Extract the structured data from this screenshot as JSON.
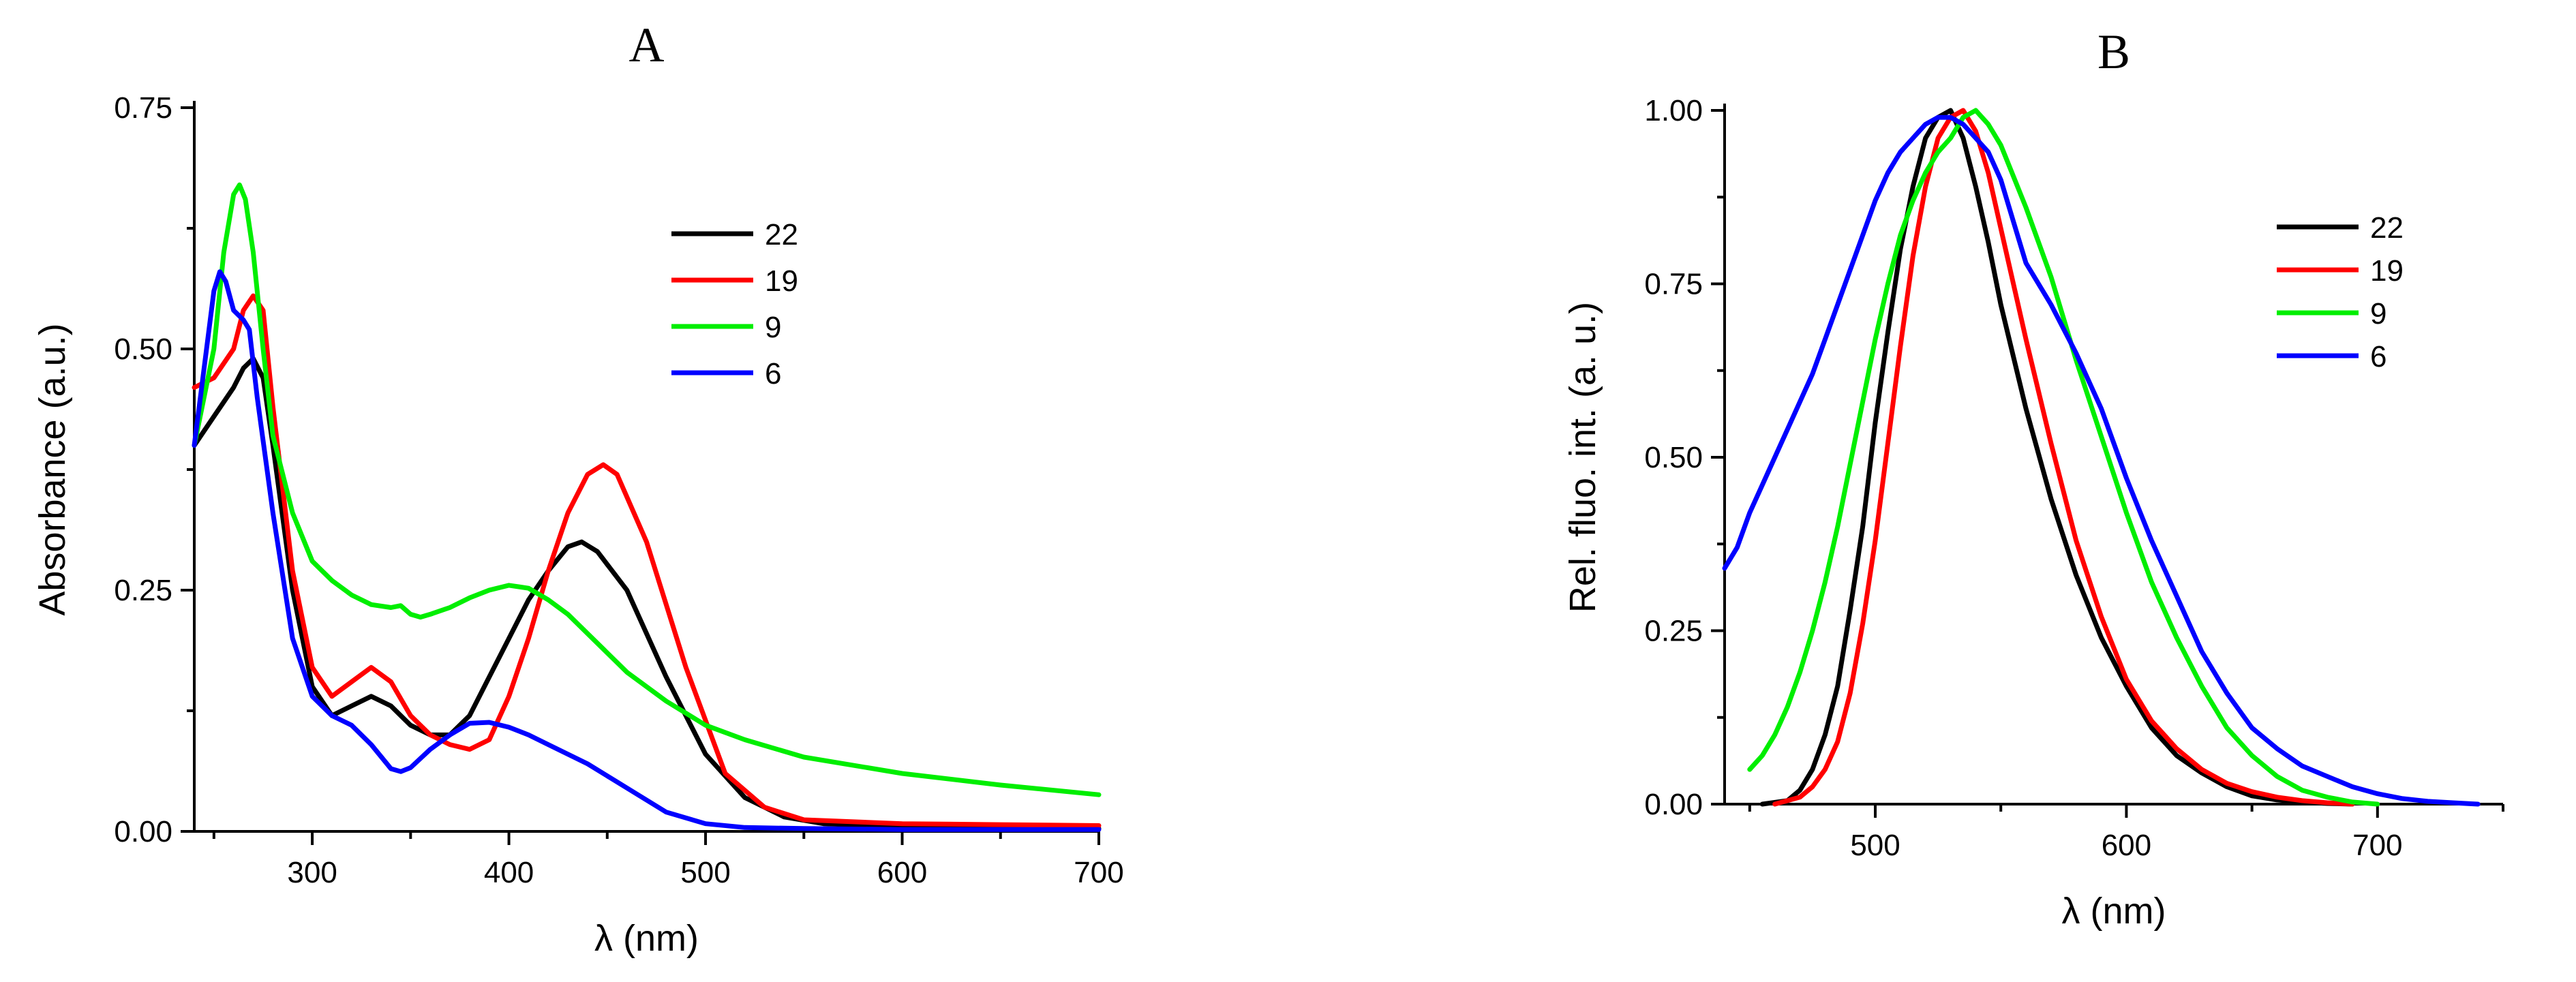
{
  "chart_data": [
    {
      "type": "line",
      "title": "A",
      "xlabel": "λ (nm)",
      "ylabel": "Absorbance (a.u.)",
      "xlim": [
        240,
        700
      ],
      "ylim": [
        0,
        0.75
      ],
      "xticks": [
        300,
        400,
        500,
        600,
        700
      ],
      "xtick_labels": [
        "300",
        "400",
        "500",
        "600",
        "700"
      ],
      "yticks": [
        0,
        0.25,
        0.5,
        0.75
      ],
      "ytick_labels": [
        "0.00",
        "0.25",
        "0.50",
        "0.75"
      ],
      "legend_position": "top-right",
      "series": [
        {
          "name": "22",
          "color": "#000000",
          "x": [
            240,
            250,
            260,
            265,
            270,
            275,
            280,
            290,
            300,
            310,
            320,
            330,
            340,
            350,
            360,
            370,
            380,
            390,
            400,
            410,
            420,
            430,
            437,
            445,
            460,
            480,
            500,
            520,
            540,
            560,
            600,
            650,
            700
          ],
          "y": [
            0.4,
            0.43,
            0.46,
            0.48,
            0.49,
            0.47,
            0.4,
            0.25,
            0.15,
            0.12,
            0.13,
            0.14,
            0.13,
            0.11,
            0.1,
            0.1,
            0.12,
            0.16,
            0.2,
            0.24,
            0.27,
            0.295,
            0.3,
            0.29,
            0.25,
            0.16,
            0.08,
            0.035,
            0.015,
            0.008,
            0.005,
            0.004,
            0.003
          ]
        },
        {
          "name": "19",
          "color": "#ff0000",
          "x": [
            240,
            250,
            260,
            265,
            270,
            275,
            280,
            290,
            300,
            310,
            320,
            330,
            340,
            350,
            360,
            370,
            380,
            390,
            400,
            410,
            420,
            430,
            440,
            448,
            455,
            470,
            490,
            510,
            530,
            550,
            600,
            650,
            700
          ],
          "y": [
            0.46,
            0.47,
            0.5,
            0.54,
            0.555,
            0.54,
            0.44,
            0.27,
            0.17,
            0.14,
            0.155,
            0.17,
            0.155,
            0.12,
            0.1,
            0.09,
            0.085,
            0.095,
            0.14,
            0.2,
            0.27,
            0.33,
            0.37,
            0.38,
            0.37,
            0.3,
            0.17,
            0.06,
            0.025,
            0.012,
            0.008,
            0.007,
            0.006
          ]
        },
        {
          "name": "9",
          "color": "#00ee00",
          "x": [
            240,
            250,
            255,
            260,
            263,
            266,
            270,
            275,
            280,
            290,
            300,
            310,
            320,
            330,
            340,
            345,
            350,
            355,
            360,
            370,
            380,
            390,
            400,
            410,
            420,
            430,
            440,
            460,
            480,
            500,
            520,
            550,
            600,
            650,
            700
          ],
          "y": [
            0.4,
            0.5,
            0.6,
            0.66,
            0.67,
            0.655,
            0.6,
            0.5,
            0.41,
            0.33,
            0.28,
            0.26,
            0.245,
            0.235,
            0.232,
            0.234,
            0.225,
            0.222,
            0.225,
            0.232,
            0.242,
            0.25,
            0.255,
            0.252,
            0.24,
            0.225,
            0.205,
            0.165,
            0.135,
            0.11,
            0.095,
            0.077,
            0.06,
            0.048,
            0.038
          ]
        },
        {
          "name": "6",
          "color": "#0000ff",
          "x": [
            240,
            245,
            250,
            253,
            256,
            260,
            265,
            268,
            272,
            280,
            290,
            300,
            310,
            320,
            330,
            340,
            345,
            350,
            360,
            370,
            380,
            390,
            400,
            410,
            420,
            440,
            460,
            480,
            500,
            520,
            550,
            600,
            650,
            700
          ],
          "y": [
            0.4,
            0.48,
            0.56,
            0.58,
            0.57,
            0.54,
            0.53,
            0.52,
            0.45,
            0.33,
            0.2,
            0.14,
            0.12,
            0.11,
            0.09,
            0.065,
            0.062,
            0.066,
            0.085,
            0.1,
            0.112,
            0.113,
            0.108,
            0.1,
            0.09,
            0.07,
            0.045,
            0.02,
            0.008,
            0.004,
            0.003,
            0.002,
            0.002,
            0.002
          ]
        }
      ]
    },
    {
      "type": "line",
      "title": "B",
      "xlabel": "λ (nm)",
      "ylabel": "Rel. fluo. int. (a. u.)",
      "xlim": [
        440,
        750
      ],
      "ylim": [
        0,
        1.0
      ],
      "xticks": [
        500,
        600,
        700
      ],
      "xtick_labels": [
        "500",
        "600",
        "700"
      ],
      "yticks": [
        0,
        0.25,
        0.5,
        0.75,
        1.0
      ],
      "ytick_labels": [
        "0.00",
        "0.25",
        "0.50",
        "0.75",
        "1.00"
      ],
      "legend_position": "top-right",
      "series": [
        {
          "name": "22",
          "color": "#000000",
          "x": [
            455,
            465,
            470,
            475,
            480,
            485,
            490,
            495,
            500,
            505,
            510,
            515,
            520,
            525,
            530,
            535,
            540,
            545,
            550,
            560,
            570,
            580,
            590,
            600,
            610,
            620,
            630,
            640,
            650,
            660,
            670,
            680,
            690
          ],
          "y": [
            0.0,
            0.005,
            0.02,
            0.05,
            0.1,
            0.17,
            0.28,
            0.4,
            0.55,
            0.68,
            0.8,
            0.89,
            0.96,
            0.99,
            1.0,
            0.96,
            0.89,
            0.81,
            0.72,
            0.57,
            0.44,
            0.33,
            0.24,
            0.17,
            0.11,
            0.07,
            0.045,
            0.025,
            0.012,
            0.006,
            0.003,
            0.001,
            0.0
          ]
        },
        {
          "name": "19",
          "color": "#ff0000",
          "x": [
            460,
            470,
            475,
            480,
            485,
            490,
            495,
            500,
            505,
            510,
            515,
            520,
            525,
            530,
            535,
            540,
            545,
            550,
            560,
            570,
            580,
            590,
            600,
            610,
            620,
            630,
            640,
            650,
            660,
            670,
            680,
            690
          ],
          "y": [
            0.0,
            0.01,
            0.025,
            0.05,
            0.09,
            0.16,
            0.26,
            0.38,
            0.52,
            0.66,
            0.79,
            0.89,
            0.96,
            0.99,
            1.0,
            0.97,
            0.91,
            0.83,
            0.67,
            0.52,
            0.38,
            0.27,
            0.18,
            0.12,
            0.08,
            0.05,
            0.03,
            0.018,
            0.01,
            0.005,
            0.002,
            0.0
          ]
        },
        {
          "name": "9",
          "color": "#00ee00",
          "x": [
            450,
            455,
            460,
            465,
            470,
            475,
            480,
            485,
            490,
            495,
            500,
            505,
            510,
            515,
            520,
            525,
            530,
            535,
            540,
            545,
            550,
            560,
            570,
            580,
            590,
            600,
            610,
            620,
            630,
            640,
            650,
            660,
            670,
            680,
            690,
            700
          ],
          "y": [
            0.05,
            0.07,
            0.1,
            0.14,
            0.19,
            0.25,
            0.32,
            0.4,
            0.49,
            0.58,
            0.67,
            0.75,
            0.82,
            0.87,
            0.91,
            0.94,
            0.96,
            0.99,
            1.0,
            0.98,
            0.95,
            0.86,
            0.76,
            0.64,
            0.53,
            0.42,
            0.32,
            0.24,
            0.17,
            0.11,
            0.07,
            0.04,
            0.02,
            0.01,
            0.003,
            0.0
          ]
        },
        {
          "name": "6",
          "color": "#0000ff",
          "x": [
            440,
            445,
            450,
            455,
            460,
            465,
            470,
            475,
            480,
            485,
            490,
            495,
            500,
            505,
            510,
            515,
            520,
            525,
            530,
            535,
            540,
            545,
            550,
            555,
            560,
            570,
            580,
            590,
            600,
            610,
            620,
            630,
            640,
            650,
            660,
            670,
            680,
            690,
            700,
            710,
            720,
            730,
            740
          ],
          "y": [
            0.34,
            0.37,
            0.42,
            0.46,
            0.5,
            0.54,
            0.58,
            0.62,
            0.67,
            0.72,
            0.77,
            0.82,
            0.87,
            0.91,
            0.94,
            0.96,
            0.98,
            0.99,
            0.99,
            0.98,
            0.96,
            0.94,
            0.9,
            0.84,
            0.78,
            0.72,
            0.65,
            0.57,
            0.47,
            0.38,
            0.3,
            0.22,
            0.16,
            0.11,
            0.08,
            0.055,
            0.04,
            0.025,
            0.015,
            0.008,
            0.004,
            0.002,
            0.0
          ]
        }
      ]
    }
  ]
}
